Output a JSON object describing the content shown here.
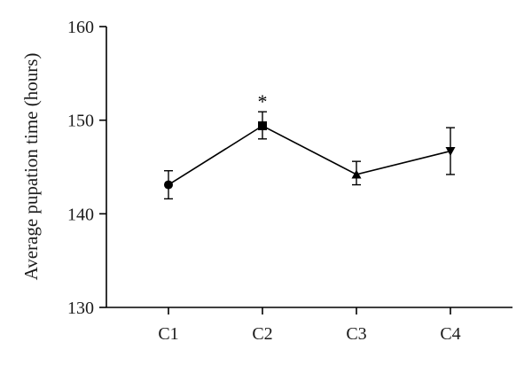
{
  "chart_data": {
    "type": "line",
    "title": "",
    "xlabel": "",
    "ylabel": "Average pupation time (hours)",
    "categories": [
      "C1",
      "C2",
      "C3",
      "C4"
    ],
    "ylim": [
      130,
      160
    ],
    "yticks": [
      130,
      140,
      150,
      160
    ],
    "grid": false,
    "legend": "none",
    "series": [
      {
        "values": [
          143.1,
          149.4,
          144.2,
          146.7
        ],
        "error_low": [
          141.6,
          148.0,
          143.1,
          144.2
        ],
        "error_high": [
          144.6,
          150.9,
          145.6,
          149.2
        ],
        "markers": [
          "circle",
          "square",
          "triangle-up",
          "triangle-down"
        ],
        "color": "#000000"
      }
    ],
    "annotations": [
      {
        "category": "C2",
        "text": "*"
      }
    ]
  }
}
